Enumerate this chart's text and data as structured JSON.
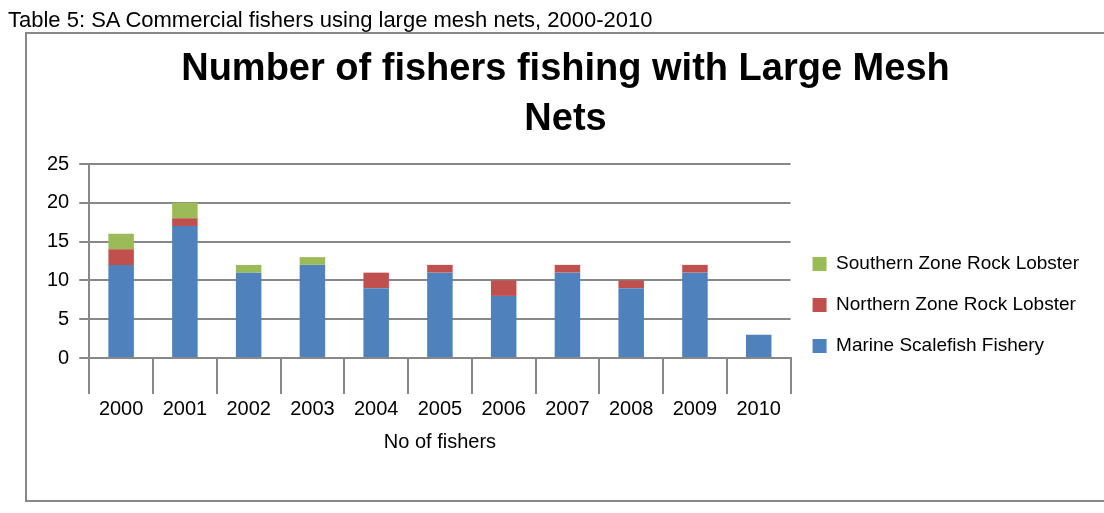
{
  "chart_data": {
    "type": "bar",
    "title": "Number of fishers fishing with Large Mesh Nets",
    "annotations": [
      "Table 5: SA Commercial fishers using large mesh nets, 2000-2010"
    ],
    "xlabel": "No of fishers",
    "categories": [
      "2000",
      "2001",
      "2002",
      "2003",
      "2004",
      "2005",
      "2006",
      "2007",
      "2008",
      "2009",
      "2010"
    ],
    "stacked": true,
    "ylim": [
      0,
      25
    ],
    "yticks": [
      0,
      5,
      10,
      15,
      20,
      25
    ],
    "grid": "y",
    "legend": "right",
    "series": [
      {
        "name": "Marine Scalefish Fishery",
        "color": "#4f81bd",
        "values": [
          12,
          17,
          11,
          12,
          9,
          11,
          8,
          11,
          9,
          11,
          3
        ]
      },
      {
        "name": "Northern Zone Rock Lobster",
        "color": "#c0504d",
        "values": [
          2,
          1,
          0,
          0,
          2,
          1,
          2,
          1,
          1,
          1,
          0
        ]
      },
      {
        "name": "Southern Zone Rock Lobster",
        "color": "#9bbb59",
        "values": [
          2,
          2,
          1,
          1,
          0,
          0,
          0,
          0,
          0,
          0,
          0
        ]
      }
    ]
  }
}
